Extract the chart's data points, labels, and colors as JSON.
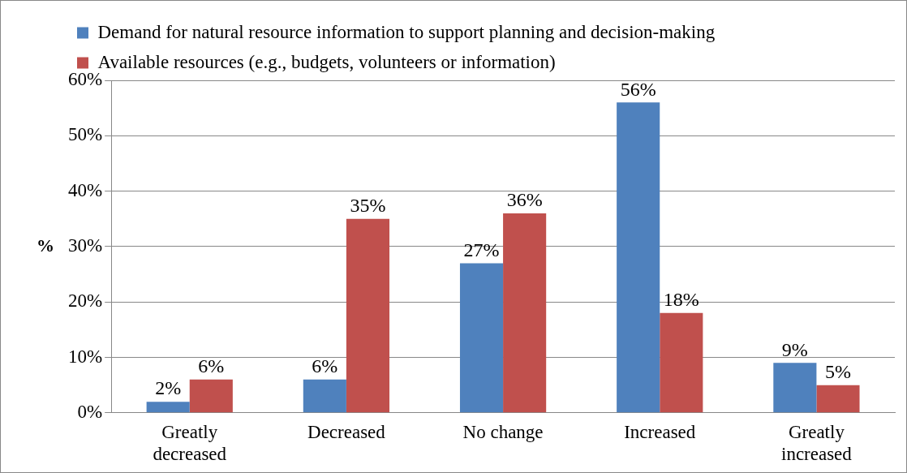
{
  "chart_data": {
    "type": "bar",
    "ylabel": "%",
    "categories": [
      "Greatly decreased",
      "Decreased",
      "No change",
      "Increased",
      "Greatly increased"
    ],
    "series": [
      {
        "name": "Demand for natural resource information to support planning and decision-making",
        "color": "#4f81bd",
        "values": [
          2,
          6,
          27,
          56,
          9
        ],
        "value_labels": [
          "2%",
          "6%",
          "27%",
          "56%",
          "9%"
        ]
      },
      {
        "name": "Available resources (e.g., budgets, volunteers or information)",
        "color": "#c0504d",
        "values": [
          6,
          35,
          36,
          18,
          5
        ],
        "value_labels": [
          "6%",
          "35%",
          "36%",
          "18%",
          "5%"
        ]
      }
    ],
    "ylim": [
      0,
      60
    ],
    "yticks": [
      {
        "value": 0,
        "label": "0%"
      },
      {
        "value": 10,
        "label": "10%"
      },
      {
        "value": 20,
        "label": "20%"
      },
      {
        "value": 30,
        "label": "30%"
      },
      {
        "value": 40,
        "label": "40%"
      },
      {
        "value": 50,
        "label": "50%"
      },
      {
        "value": 60,
        "label": "60%"
      }
    ],
    "grid": "y",
    "legend": "top left"
  }
}
